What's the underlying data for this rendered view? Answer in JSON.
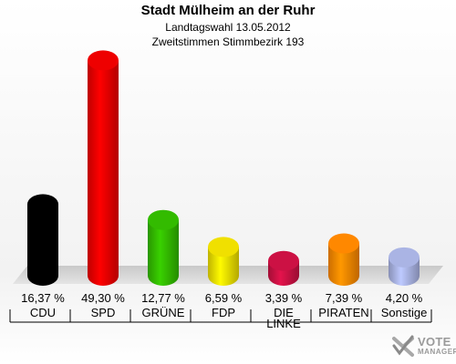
{
  "title": "Stadt Mülheim an der Ruhr",
  "subtitle1": "Landtagswahl 13.05.2012",
  "subtitle2": "Zweitstimmen Stimmbezirk 193",
  "logo": {
    "line1": "VOTE",
    "line2": "MANAGER",
    "icon": "checkmark-x-icon"
  },
  "chart_data": {
    "type": "bar",
    "categories": [
      "CDU",
      "SPD",
      "GRÜNE",
      "FDP",
      "DIE LINKE",
      "PIRATEN",
      "Sonstige"
    ],
    "label_lines": [
      [
        "CDU"
      ],
      [
        "SPD"
      ],
      [
        "GRÜNE"
      ],
      [
        "FDP"
      ],
      [
        "DIE",
        "LINKE"
      ],
      [
        "PIRATEN"
      ],
      [
        "Sonstige"
      ]
    ],
    "values": [
      16.37,
      49.3,
      12.77,
      6.59,
      3.39,
      7.39,
      4.2
    ],
    "value_labels": [
      "16,37 %",
      "49,30 %",
      "12,77 %",
      "6,59 %",
      "3,39 %",
      "7,39 %",
      "4,20 %"
    ],
    "colors": [
      "#000000",
      "#ee0000",
      "#33bb00",
      "#f0e000",
      "#cc1144",
      "#ff8800",
      "#aab4e4"
    ],
    "unit": "%",
    "ylim": [
      0,
      50
    ],
    "grid": false
  }
}
